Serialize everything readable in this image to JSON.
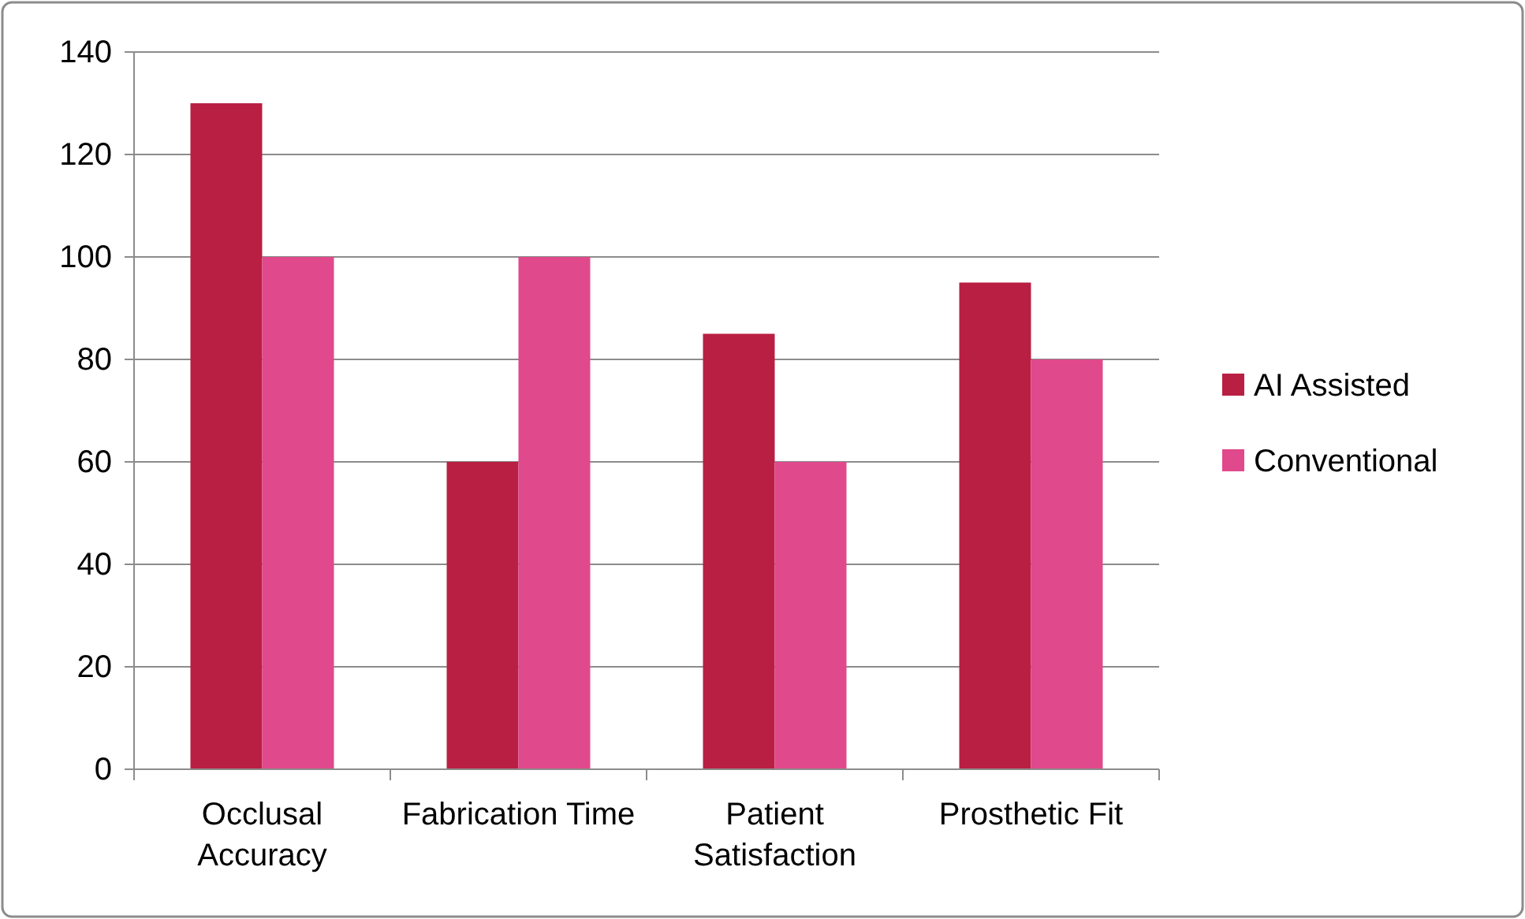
{
  "chart_data": {
    "type": "bar",
    "categories": [
      "Occlusal Accuracy",
      "Fabrication Time",
      "Patient Satisfaction",
      "Prosthetic Fit"
    ],
    "series": [
      {
        "name": "AI Assisted",
        "color": "#b91f42",
        "values": [
          130,
          60,
          85,
          95
        ]
      },
      {
        "name": "Conventional",
        "color": "#e0498b",
        "values": [
          100,
          100,
          60,
          80
        ]
      }
    ],
    "ylim": [
      0,
      140
    ],
    "yticks": [
      0,
      20,
      40,
      60,
      80,
      100,
      120,
      140
    ],
    "grid": "y",
    "legend": "right"
  }
}
